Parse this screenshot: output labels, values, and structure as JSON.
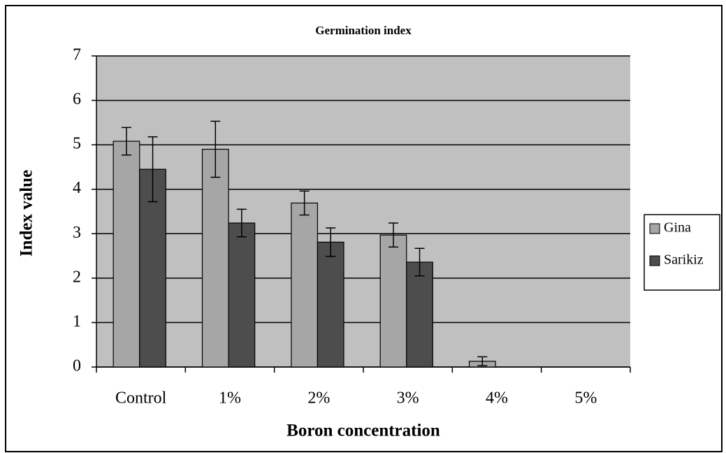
{
  "chart_data": {
    "type": "bar",
    "title": "Germination index",
    "x_label": "Boron concentration",
    "y_label": "Index value",
    "categories": [
      "Control",
      "1%",
      "2%",
      "3%",
      "4%",
      "5%"
    ],
    "series": [
      {
        "name": "Gina",
        "color": "#a6a6a6",
        "values": [
          5.08,
          4.9,
          3.69,
          2.97,
          0.13,
          0
        ],
        "errors": [
          0.31,
          0.63,
          0.27,
          0.27,
          0.1,
          null
        ]
      },
      {
        "name": "Sarikiz",
        "color": "#4d4d4d",
        "values": [
          4.45,
          3.24,
          2.81,
          2.36,
          0,
          0
        ],
        "errors": [
          0.73,
          0.31,
          0.32,
          0.31,
          null,
          null
        ]
      }
    ],
    "ylim": [
      0,
      7
    ],
    "yticks": [
      0,
      1,
      2,
      3,
      4,
      5,
      6,
      7
    ],
    "grid": true,
    "legend": "right",
    "plot_background": "#c0c0c0"
  }
}
